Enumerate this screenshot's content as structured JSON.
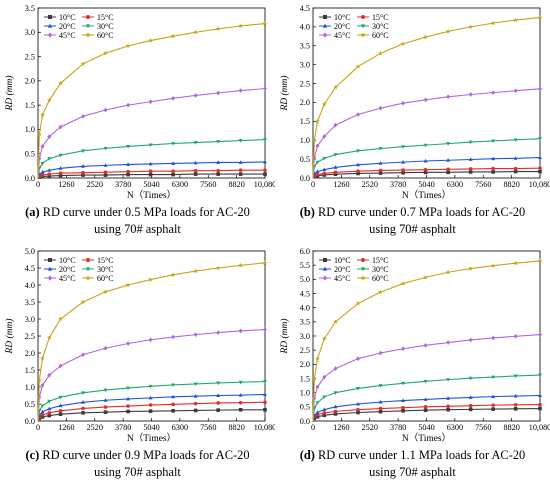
{
  "series_styles": [
    {
      "name": "10°C",
      "color": "#3b3b3b",
      "marker": "square"
    },
    {
      "name": "15°C",
      "color": "#e0302b",
      "marker": "circle"
    },
    {
      "name": "20°C",
      "color": "#1f54d8",
      "marker": "triangle-up"
    },
    {
      "name": "30°C",
      "color": "#20a86a",
      "marker": "triangle-down"
    },
    {
      "name": "45°C",
      "color": "#b266e0",
      "marker": "diamond"
    },
    {
      "name": "60°C",
      "color": "#c9a417",
      "marker": "star"
    }
  ],
  "panels": [
    {
      "tag": "(a)",
      "caption_line1": "RD curve under 0.5 MPa loads for AC-20",
      "caption_line2": "using 70# asphalt"
    },
    {
      "tag": "(b)",
      "caption_line1": "RD curve under 0.7 MPa loads for AC-20",
      "caption_line2": "using 70# asphalt"
    },
    {
      "tag": "(c)",
      "caption_line1": "RD curve under 0.9 MPa loads for AC-20",
      "caption_line2": "using 70# asphalt"
    },
    {
      "tag": "(d)",
      "caption_line1": "RD curve under 1.1 MPa loads for AC-20",
      "caption_line2": "using 70# asphalt"
    }
  ],
  "chart_data": [
    {
      "type": "line",
      "title": "",
      "xlabel": "N（Times）",
      "ylabel": "RD (mm)",
      "xlim": [
        0,
        10080
      ],
      "ylim": [
        0,
        3.5
      ],
      "x_ticks": [
        "0",
        "1260",
        "2520",
        "3780",
        "5040",
        "6300",
        "7560",
        "8820",
        "10,080"
      ],
      "y_ticks": [
        "0.0",
        "0.5",
        "1.0",
        "1.5",
        "2.0",
        "2.5",
        "3.0",
        "3.5"
      ],
      "legend_placement": "top-left",
      "x": [
        0,
        60,
        200,
        500,
        1000,
        2000,
        3000,
        4000,
        5000,
        6000,
        7000,
        8000,
        9000,
        10080
      ],
      "series": [
        {
          "name": "10°C",
          "values": [
            0,
            0.02,
            0.03,
            0.04,
            0.05,
            0.06,
            0.06,
            0.07,
            0.07,
            0.07,
            0.08,
            0.08,
            0.08,
            0.08
          ]
        },
        {
          "name": "15°C",
          "values": [
            0,
            0.04,
            0.06,
            0.08,
            0.1,
            0.11,
            0.12,
            0.13,
            0.14,
            0.14,
            0.15,
            0.15,
            0.16,
            0.16
          ]
        },
        {
          "name": "20°C",
          "values": [
            0,
            0.08,
            0.12,
            0.16,
            0.2,
            0.24,
            0.26,
            0.28,
            0.29,
            0.3,
            0.31,
            0.32,
            0.32,
            0.33
          ]
        },
        {
          "name": "30°C",
          "values": [
            0,
            0.2,
            0.3,
            0.4,
            0.47,
            0.56,
            0.61,
            0.65,
            0.68,
            0.71,
            0.73,
            0.75,
            0.77,
            0.79
          ]
        },
        {
          "name": "45°C",
          "values": [
            0,
            0.4,
            0.65,
            0.85,
            1.05,
            1.27,
            1.4,
            1.5,
            1.57,
            1.64,
            1.7,
            1.75,
            1.8,
            1.84
          ]
        },
        {
          "name": "60°C",
          "values": [
            0,
            0.9,
            1.3,
            1.6,
            1.95,
            2.35,
            2.57,
            2.72,
            2.83,
            2.92,
            3.0,
            3.07,
            3.13,
            3.18
          ]
        }
      ]
    },
    {
      "type": "line",
      "title": "",
      "xlabel": "N（Times）",
      "ylabel": "RD (mm)",
      "xlim": [
        0,
        10080
      ],
      "ylim": [
        0,
        4.5
      ],
      "x_ticks": [
        "0",
        "1260",
        "2520",
        "3780",
        "5040",
        "6300",
        "7560",
        "8820",
        "10,080"
      ],
      "y_ticks": [
        "0.0",
        "0.5",
        "1.0",
        "1.5",
        "2.0",
        "2.5",
        "3.0",
        "3.5",
        "4.0",
        "4.5"
      ],
      "legend_placement": "top-left",
      "x": [
        0,
        60,
        200,
        500,
        1000,
        2000,
        3000,
        4000,
        5000,
        6000,
        7000,
        8000,
        9000,
        10080
      ],
      "series": [
        {
          "name": "10°C",
          "values": [
            0,
            0.04,
            0.06,
            0.08,
            0.1,
            0.12,
            0.13,
            0.14,
            0.15,
            0.15,
            0.16,
            0.16,
            0.17,
            0.17
          ]
        },
        {
          "name": "15°C",
          "values": [
            0,
            0.06,
            0.09,
            0.12,
            0.15,
            0.18,
            0.2,
            0.21,
            0.22,
            0.23,
            0.24,
            0.25,
            0.25,
            0.26
          ]
        },
        {
          "name": "20°C",
          "values": [
            0,
            0.12,
            0.17,
            0.22,
            0.28,
            0.35,
            0.39,
            0.42,
            0.45,
            0.47,
            0.49,
            0.51,
            0.52,
            0.54
          ]
        },
        {
          "name": "30°C",
          "values": [
            0,
            0.3,
            0.42,
            0.52,
            0.62,
            0.72,
            0.78,
            0.83,
            0.87,
            0.91,
            0.95,
            0.98,
            1.01,
            1.04
          ]
        },
        {
          "name": "45°C",
          "values": [
            0,
            0.55,
            0.85,
            1.1,
            1.4,
            1.68,
            1.85,
            1.98,
            2.07,
            2.15,
            2.21,
            2.26,
            2.31,
            2.36
          ]
        },
        {
          "name": "60°C",
          "values": [
            0,
            1.0,
            1.5,
            1.95,
            2.4,
            2.95,
            3.3,
            3.55,
            3.73,
            3.88,
            4.0,
            4.1,
            4.18,
            4.25
          ]
        }
      ]
    },
    {
      "type": "line",
      "title": "",
      "xlabel": "N（Times）",
      "ylabel": "RD (mm)",
      "xlim": [
        0,
        10080
      ],
      "ylim": [
        0,
        5.0
      ],
      "x_ticks": [
        "0",
        "1260",
        "2520",
        "3780",
        "5040",
        "6300",
        "7560",
        "8820",
        "10,080"
      ],
      "y_ticks": [
        "0.0",
        "0.5",
        "1.0",
        "1.5",
        "2.0",
        "2.5",
        "3.0",
        "3.5",
        "4.0",
        "4.5",
        "5.0"
      ],
      "legend_placement": "top-left",
      "x": [
        0,
        60,
        200,
        500,
        1000,
        2000,
        3000,
        4000,
        5000,
        6000,
        7000,
        8000,
        9000,
        10080
      ],
      "series": [
        {
          "name": "10°C",
          "values": [
            0,
            0.08,
            0.12,
            0.16,
            0.2,
            0.24,
            0.26,
            0.28,
            0.29,
            0.3,
            0.31,
            0.32,
            0.33,
            0.33
          ]
        },
        {
          "name": "15°C",
          "values": [
            0,
            0.12,
            0.18,
            0.24,
            0.3,
            0.37,
            0.41,
            0.44,
            0.47,
            0.49,
            0.51,
            0.53,
            0.54,
            0.55
          ]
        },
        {
          "name": "20°C",
          "values": [
            0,
            0.18,
            0.27,
            0.36,
            0.45,
            0.55,
            0.61,
            0.65,
            0.68,
            0.71,
            0.73,
            0.75,
            0.76,
            0.78
          ]
        },
        {
          "name": "30°C",
          "values": [
            0,
            0.3,
            0.45,
            0.58,
            0.7,
            0.83,
            0.91,
            0.97,
            1.02,
            1.06,
            1.09,
            1.12,
            1.14,
            1.16
          ]
        },
        {
          "name": "45°C",
          "values": [
            0,
            0.7,
            1.05,
            1.35,
            1.62,
            1.95,
            2.14,
            2.28,
            2.39,
            2.47,
            2.54,
            2.6,
            2.65,
            2.69
          ]
        },
        {
          "name": "60°C",
          "values": [
            0,
            1.2,
            1.85,
            2.45,
            3.0,
            3.5,
            3.8,
            4.0,
            4.16,
            4.3,
            4.41,
            4.5,
            4.58,
            4.65
          ]
        }
      ]
    },
    {
      "type": "line",
      "title": "",
      "xlabel": "N（Times）",
      "ylabel": "RD (mm)",
      "xlim": [
        0,
        10080
      ],
      "ylim": [
        0,
        6.0
      ],
      "x_ticks": [
        "0",
        "1260",
        "2520",
        "3780",
        "5040",
        "6300",
        "7560",
        "8820",
        "10,080"
      ],
      "y_ticks": [
        "0.0",
        "0.5",
        "1.0",
        "1.5",
        "2.0",
        "2.5",
        "3.0",
        "3.5",
        "4.0",
        "4.5",
        "5.0",
        "5.5",
        "6.0"
      ],
      "legend_placement": "top-left",
      "x": [
        0,
        60,
        200,
        500,
        1000,
        2000,
        3000,
        4000,
        5000,
        6000,
        7000,
        8000,
        9000,
        10080
      ],
      "series": [
        {
          "name": "10°C",
          "values": [
            0,
            0.1,
            0.15,
            0.2,
            0.25,
            0.3,
            0.33,
            0.36,
            0.38,
            0.4,
            0.41,
            0.42,
            0.43,
            0.44
          ]
        },
        {
          "name": "15°C",
          "values": [
            0,
            0.15,
            0.22,
            0.28,
            0.34,
            0.4,
            0.44,
            0.47,
            0.5,
            0.52,
            0.54,
            0.56,
            0.57,
            0.58
          ]
        },
        {
          "name": "20°C",
          "values": [
            0,
            0.2,
            0.3,
            0.4,
            0.5,
            0.6,
            0.67,
            0.72,
            0.76,
            0.8,
            0.83,
            0.86,
            0.88,
            0.9
          ]
        },
        {
          "name": "30°C",
          "values": [
            0,
            0.45,
            0.65,
            0.85,
            1.0,
            1.15,
            1.25,
            1.33,
            1.4,
            1.46,
            1.51,
            1.55,
            1.59,
            1.62
          ]
        },
        {
          "name": "45°C",
          "values": [
            0,
            0.8,
            1.2,
            1.55,
            1.85,
            2.2,
            2.4,
            2.55,
            2.67,
            2.77,
            2.86,
            2.93,
            2.99,
            3.05
          ]
        },
        {
          "name": "60°C",
          "values": [
            0,
            1.5,
            2.2,
            2.9,
            3.5,
            4.15,
            4.55,
            4.85,
            5.07,
            5.25,
            5.38,
            5.48,
            5.57,
            5.65
          ]
        }
      ]
    }
  ]
}
